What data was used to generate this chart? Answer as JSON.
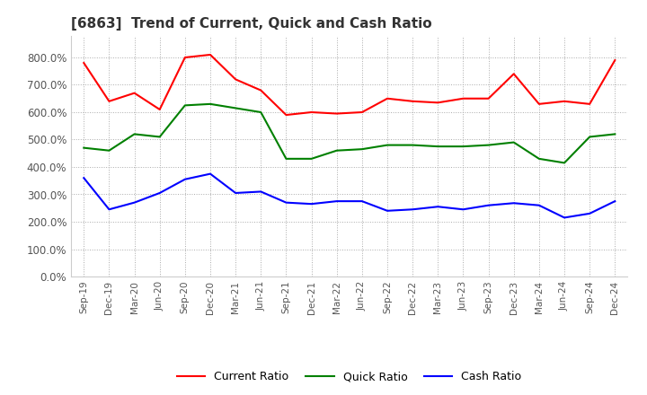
{
  "title": "[6863]  Trend of Current, Quick and Cash Ratio",
  "x_labels": [
    "Sep-19",
    "Dec-19",
    "Mar-20",
    "Jun-20",
    "Sep-20",
    "Dec-20",
    "Mar-21",
    "Jun-21",
    "Sep-21",
    "Dec-21",
    "Mar-22",
    "Jun-22",
    "Sep-22",
    "Dec-22",
    "Mar-23",
    "Jun-23",
    "Sep-23",
    "Dec-23",
    "Mar-24",
    "Jun-24",
    "Sep-24",
    "Dec-24"
  ],
  "current_ratio": [
    780,
    640,
    670,
    610,
    800,
    810,
    720,
    680,
    590,
    600,
    595,
    600,
    650,
    640,
    635,
    650,
    650,
    740,
    630,
    640,
    630,
    790
  ],
  "quick_ratio": [
    470,
    460,
    520,
    510,
    625,
    630,
    615,
    600,
    430,
    430,
    460,
    465,
    480,
    480,
    475,
    475,
    480,
    490,
    430,
    415,
    510,
    520
  ],
  "cash_ratio": [
    360,
    245,
    270,
    305,
    355,
    375,
    305,
    310,
    270,
    265,
    275,
    275,
    240,
    245,
    255,
    245,
    260,
    268,
    260,
    215,
    230,
    275
  ],
  "current_color": "#ff0000",
  "quick_color": "#008000",
  "cash_color": "#0000ff",
  "ylim": [
    0,
    880
  ],
  "yticks": [
    0,
    100,
    200,
    300,
    400,
    500,
    600,
    700,
    800
  ],
  "background_color": "#ffffff",
  "grid_color": "#aaaaaa"
}
